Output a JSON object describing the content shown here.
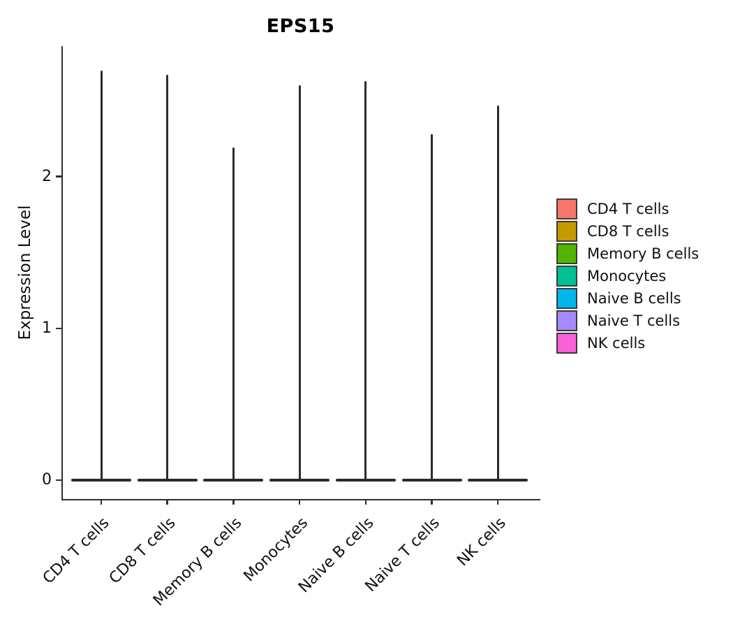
{
  "chart_data": {
    "type": "violin",
    "title": "EPS15",
    "xlabel": "",
    "ylabel": "Expression Level",
    "categories": [
      "CD4 T cells",
      "CD8 T cells",
      "Memory B cells",
      "Monocytes",
      "Naive B cells",
      "Naive T cells",
      "NK cells"
    ],
    "series": [
      {
        "name": "CD4 T cells",
        "color": "#F8766D",
        "max_expression": 2.7,
        "density_peak_at": 0
      },
      {
        "name": "CD8 T cells",
        "color": "#C49A00",
        "max_expression": 2.67,
        "density_peak_at": 0
      },
      {
        "name": "Memory B cells",
        "color": "#53B400",
        "max_expression": 2.19,
        "density_peak_at": 0
      },
      {
        "name": "Monocytes",
        "color": "#00C094",
        "max_expression": 2.6,
        "density_peak_at": 0
      },
      {
        "name": "Naive B cells",
        "color": "#00B6EB",
        "max_expression": 2.63,
        "density_peak_at": 0
      },
      {
        "name": "Naive T cells",
        "color": "#A58AFF",
        "max_expression": 2.28,
        "density_peak_at": 0
      },
      {
        "name": "NK cells",
        "color": "#FB61D7",
        "max_expression": 2.47,
        "density_peak_at": 0
      }
    ],
    "yticks": [
      0,
      1,
      2
    ],
    "ylim": [
      -0.12,
      2.86
    ],
    "grid": false,
    "legend_position": "right",
    "shape_note": "each violin is nearly all density at 0 (flat wide base) with a thin spike up to its max expression value",
    "outline_color": "#2b2b2b",
    "axis_color": "#2f2f2f"
  },
  "legend": {
    "items": [
      {
        "label": "CD4 T cells",
        "color": "#F8766D"
      },
      {
        "label": "CD8 T cells",
        "color": "#C49A00"
      },
      {
        "label": "Memory B cells",
        "color": "#53B400"
      },
      {
        "label": "Monocytes",
        "color": "#00C094"
      },
      {
        "label": "Naive B cells",
        "color": "#00B6EB"
      },
      {
        "label": "Naive T cells",
        "color": "#A58AFF"
      },
      {
        "label": "NK cells",
        "color": "#FB61D7"
      }
    ]
  }
}
